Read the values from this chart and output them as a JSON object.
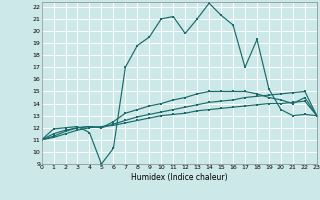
{
  "title": "",
  "xlabel": "Humidex (Indice chaleur)",
  "ylabel": "",
  "bg_color": "#cce8e8",
  "grid_color": "#ffffff",
  "line_color": "#1a6b6b",
  "xlim": [
    0,
    23
  ],
  "ylim": [
    9,
    22.4
  ],
  "xticks": [
    0,
    1,
    2,
    3,
    4,
    5,
    6,
    7,
    8,
    9,
    10,
    11,
    12,
    13,
    14,
    15,
    16,
    17,
    18,
    19,
    20,
    21,
    22,
    23
  ],
  "yticks": [
    9,
    10,
    11,
    12,
    13,
    14,
    15,
    16,
    17,
    18,
    19,
    20,
    21,
    22
  ],
  "curve1_x": [
    0,
    1,
    2,
    3,
    4,
    5,
    6,
    7,
    8,
    9,
    10,
    11,
    12,
    13,
    14,
    15,
    16,
    17,
    18,
    19,
    20,
    21,
    22,
    23
  ],
  "curve1_y": [
    11.0,
    11.9,
    12.0,
    12.1,
    11.6,
    9.0,
    10.3,
    17.0,
    18.8,
    19.5,
    21.0,
    21.2,
    19.8,
    21.0,
    22.3,
    21.3,
    20.5,
    17.0,
    19.3,
    15.2,
    13.5,
    13.0,
    13.1,
    13.0
  ],
  "curve2_x": [
    0,
    1,
    2,
    3,
    4,
    5,
    6,
    7,
    8,
    9,
    10,
    11,
    12,
    13,
    14,
    15,
    16,
    17,
    18,
    19,
    20,
    21,
    22,
    23
  ],
  "curve2_y": [
    11.0,
    11.5,
    11.8,
    12.0,
    12.1,
    12.0,
    12.5,
    13.2,
    13.5,
    13.8,
    14.0,
    14.3,
    14.5,
    14.8,
    15.0,
    15.0,
    15.0,
    15.0,
    14.8,
    14.5,
    14.3,
    14.0,
    14.5,
    13.0
  ],
  "curve3_x": [
    0,
    1,
    2,
    3,
    4,
    5,
    6,
    7,
    8,
    9,
    10,
    11,
    12,
    13,
    14,
    15,
    16,
    17,
    18,
    19,
    20,
    21,
    22,
    23
  ],
  "curve3_y": [
    11.0,
    11.3,
    11.7,
    12.0,
    12.1,
    12.0,
    12.3,
    12.6,
    12.9,
    13.1,
    13.3,
    13.5,
    13.7,
    13.9,
    14.1,
    14.2,
    14.3,
    14.5,
    14.6,
    14.7,
    14.8,
    14.9,
    15.0,
    13.0
  ],
  "curve4_x": [
    0,
    1,
    2,
    3,
    4,
    5,
    6,
    7,
    8,
    9,
    10,
    11,
    12,
    13,
    14,
    15,
    16,
    17,
    18,
    19,
    20,
    21,
    22,
    23
  ],
  "curve4_y": [
    11.0,
    11.2,
    11.5,
    11.8,
    12.0,
    12.1,
    12.2,
    12.4,
    12.6,
    12.8,
    13.0,
    13.1,
    13.2,
    13.4,
    13.5,
    13.6,
    13.7,
    13.8,
    13.9,
    14.0,
    14.0,
    14.1,
    14.2,
    13.0
  ]
}
